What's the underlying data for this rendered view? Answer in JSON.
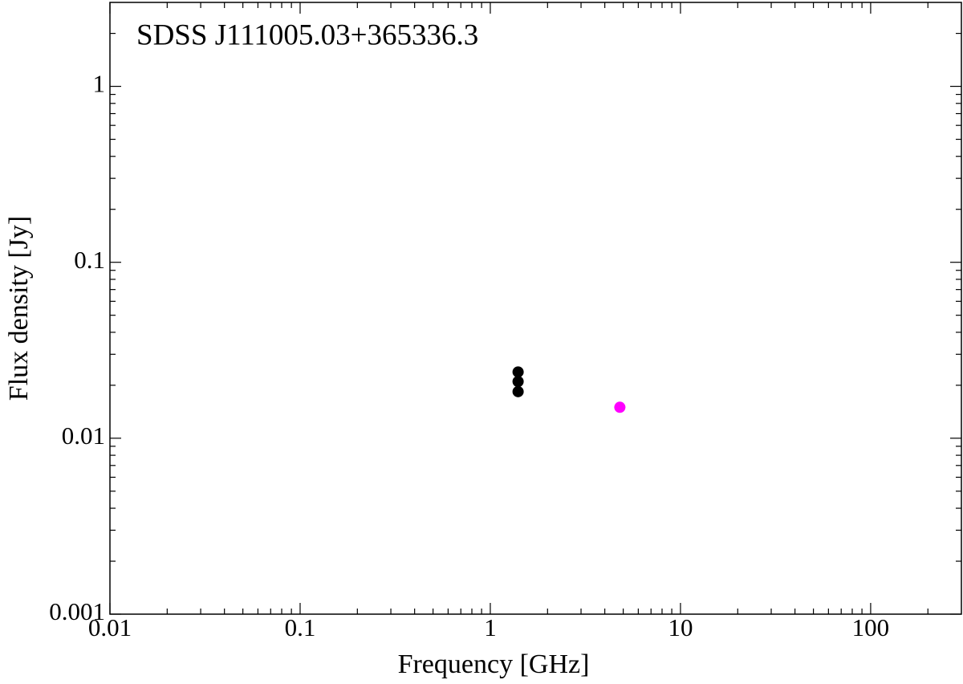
{
  "chart_data": {
    "type": "scatter",
    "title": "SDSS J111005.03+365336.3",
    "x_label": "Frequency [GHz]",
    "y_label": "Flux density [Jy]",
    "xscale": "log",
    "yscale": "log",
    "xlim": [
      0.01,
      300
    ],
    "ylim": [
      0.001,
      3
    ],
    "xticks": [
      0.01,
      0.1,
      1,
      10,
      100
    ],
    "yticks": [
      0.001,
      0.01,
      0.1,
      1
    ],
    "series": [
      {
        "color": "#000000",
        "x": [
          1.4,
          1.4,
          1.4
        ],
        "values": [
          0.0238,
          0.021,
          0.0184
        ]
      },
      {
        "color": "#ff00ff",
        "x": [
          4.8
        ],
        "values": [
          0.015
        ]
      }
    ]
  }
}
